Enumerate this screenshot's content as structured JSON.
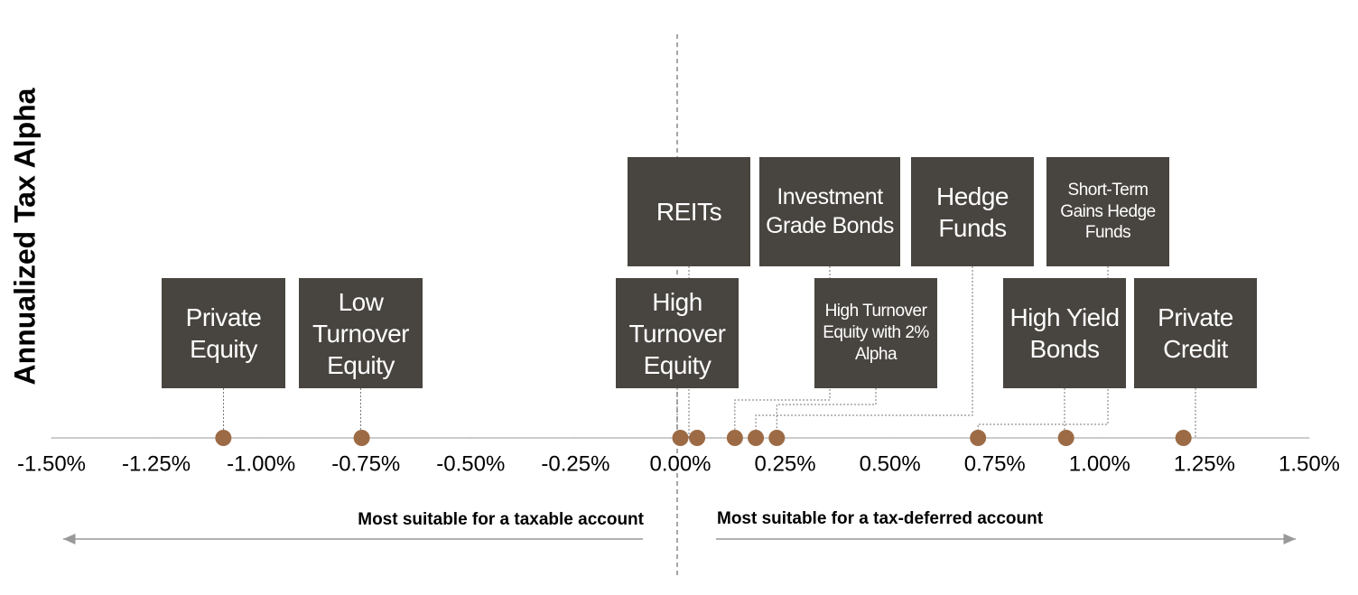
{
  "chart_data": {
    "type": "scatter",
    "y_label": "Annualized Tax Alpha",
    "labels": [
      "Private Equity",
      "Low Turnover Equity",
      "High Turnover Equity",
      "REITs",
      "Investment Grade Bonds",
      "Hedge Funds",
      "High Turnover Equity with 2% Alpha",
      "Short-Term Gains Hedge Funds",
      "High Yield Bonds",
      "Private Credit"
    ],
    "x": [
      -1.09,
      -0.76,
      0.0,
      0.04,
      0.13,
      0.18,
      0.23,
      0.71,
      0.92,
      1.2
    ],
    "color": "#9c6b45",
    "label_color": "#48443f",
    "xlim": [
      -1.5,
      1.5
    ],
    "xticks": [
      {
        "value": -1.5,
        "label": "-1.50%"
      },
      {
        "value": -1.25,
        "label": "-1.25%"
      },
      {
        "value": -1.0,
        "label": "-1.00%"
      },
      {
        "value": -0.75,
        "label": "-0.75%"
      },
      {
        "value": -0.5,
        "label": "-0.50%"
      },
      {
        "value": -0.25,
        "label": "-0.25%"
      },
      {
        "value": 0.0,
        "label": "0.00%"
      },
      {
        "value": 0.25,
        "label": "0.25%"
      },
      {
        "value": 0.5,
        "label": "0.50%"
      },
      {
        "value": 0.75,
        "label": "0.75%"
      },
      {
        "value": 1.0,
        "label": "1.00%"
      },
      {
        "value": 1.25,
        "label": "1.25%"
      },
      {
        "value": 1.5,
        "label": "1.50%"
      }
    ],
    "annotations": [
      "Most suitable for a taxable account",
      "Most suitable for a tax-deferred account"
    ]
  }
}
